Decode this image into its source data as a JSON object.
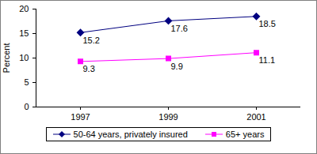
{
  "chart_data": {
    "type": "line",
    "categories": [
      "1997",
      "1999",
      "2001"
    ],
    "y_label": "Percent",
    "ylim": [
      0,
      20
    ],
    "yticks": [
      0,
      5,
      10,
      15,
      20
    ],
    "legend": "bottom",
    "data_labels": true,
    "series": [
      {
        "name": "50-64 years, privately insured",
        "color": "#000080",
        "marker": "diamond",
        "values": [
          15.2,
          17.6,
          18.5
        ]
      },
      {
        "name": "65+ years",
        "color": "#ff00ff",
        "marker": "square",
        "values": [
          9.3,
          9.9,
          11.1
        ]
      }
    ]
  }
}
